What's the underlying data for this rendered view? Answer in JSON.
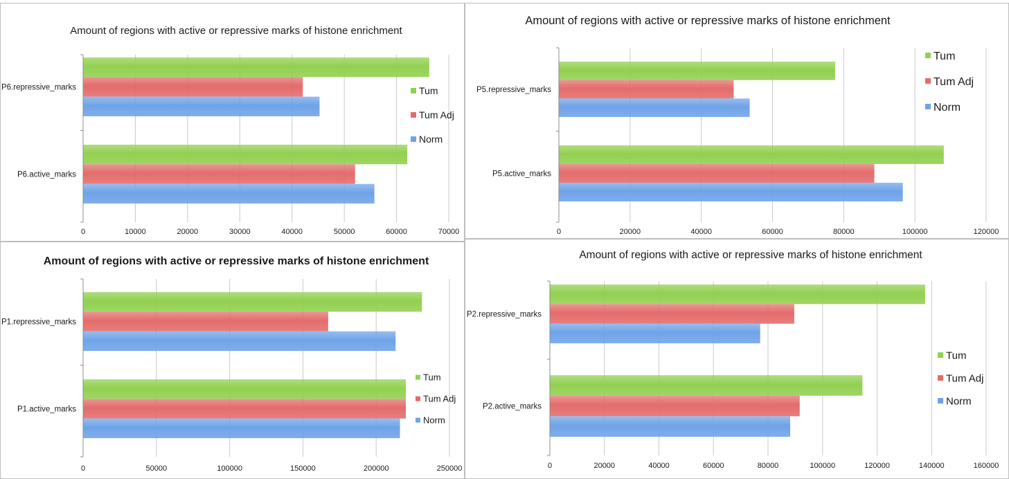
{
  "colors": {
    "Tum": "#92d050",
    "Tum Adj": "#e46c6c",
    "Norm": "#6fa3e8",
    "grid": "#c8c8c8",
    "axis": "#8c8c8c"
  },
  "chart_data": [
    {
      "type": "bar",
      "orientation": "horizontal",
      "title": "Amount of regions with active or repressive marks of histone enrichment",
      "categories": [
        "P6.repressive_marks",
        "P6.active_marks"
      ],
      "series": [
        {
          "name": "Tum",
          "values": [
            66200,
            62000
          ]
        },
        {
          "name": "Tum Adj",
          "values": [
            42000,
            52000
          ]
        },
        {
          "name": "Norm",
          "values": [
            45200,
            55700
          ]
        }
      ],
      "xlim": [
        0,
        70000
      ],
      "xticks": [
        0,
        10000,
        20000,
        30000,
        40000,
        50000,
        60000,
        70000
      ],
      "grid": true,
      "legend": "right"
    },
    {
      "type": "bar",
      "orientation": "horizontal",
      "title": "Amount of regions with active or repressive marks of histone enrichment",
      "categories": [
        "P5.repressive_marks",
        "P5.active_marks"
      ],
      "series": [
        {
          "name": "Tum",
          "values": [
            77500,
            108000
          ]
        },
        {
          "name": "Tum Adj",
          "values": [
            49000,
            88500
          ]
        },
        {
          "name": "Norm",
          "values": [
            53500,
            96500
          ]
        }
      ],
      "xlim": [
        0,
        120000
      ],
      "xticks": [
        0,
        20000,
        40000,
        60000,
        80000,
        100000,
        120000
      ],
      "grid": true,
      "legend": "top-right"
    },
    {
      "type": "bar",
      "orientation": "horizontal",
      "title": "Amount of regions with active or repressive marks of histone enrichment",
      "categories": [
        "P1.repressive_marks",
        "P1.active_marks"
      ],
      "series": [
        {
          "name": "Tum",
          "values": [
            231000,
            220000
          ]
        },
        {
          "name": "Tum Adj",
          "values": [
            167000,
            220000
          ]
        },
        {
          "name": "Norm",
          "values": [
            213000,
            216000
          ]
        }
      ],
      "xlim": [
        0,
        250000
      ],
      "xticks": [
        0,
        50000,
        100000,
        150000,
        200000,
        250000
      ],
      "grid": true,
      "legend": "bottom-right"
    },
    {
      "type": "bar",
      "orientation": "horizontal",
      "title": "Amount of regions with active or repressive marks of histone enrichment",
      "categories": [
        "P2.repressive_marks",
        "P2.active_marks"
      ],
      "series": [
        {
          "name": "Tum",
          "values": [
            137500,
            114500
          ]
        },
        {
          "name": "Tum Adj",
          "values": [
            89500,
            91500
          ]
        },
        {
          "name": "Norm",
          "values": [
            77000,
            88000
          ]
        }
      ],
      "xlim": [
        0,
        160000
      ],
      "xticks": [
        0,
        20000,
        40000,
        60000,
        80000,
        100000,
        120000,
        140000,
        160000
      ],
      "grid": true,
      "legend": "right"
    }
  ]
}
